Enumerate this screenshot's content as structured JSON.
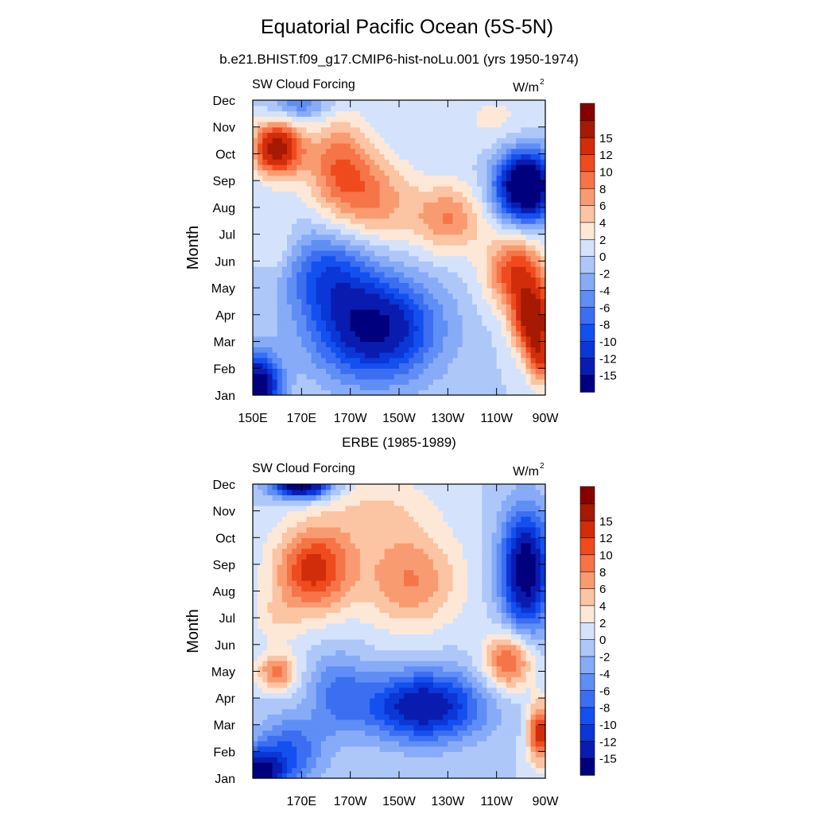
{
  "title": "Equatorial Pacific Ocean (5S-5N)",
  "colorbar": {
    "levels": [
      -15,
      -12,
      -10,
      -8,
      -6,
      -4,
      -2,
      0,
      2,
      4,
      6,
      8,
      10,
      12,
      15
    ],
    "colors": [
      "#00007f",
      "#0a1cb0",
      "#0a37d6",
      "#1450f0",
      "#3c6ef2",
      "#5f8ef5",
      "#87abf7",
      "#adc7f9",
      "#d4e3fb",
      "#fde8d8",
      "#fbc4a2",
      "#f99b70",
      "#f57448",
      "#ef4b1e",
      "#d22d0a",
      "#a51a00",
      "#870000"
    ]
  },
  "chart_data": [
    {
      "type": "heatmap",
      "subtitle": "b.e21.BHIST.f09_g17.CMIP6-hist-noLu.001 (yrs 1950-1974)",
      "left_label": "SW Cloud Forcing",
      "units_label": "W/m",
      "units_sup": "2",
      "ylabel": "Month",
      "yticks": [
        "Jan",
        "Feb",
        "Mar",
        "Apr",
        "May",
        "Jun",
        "Jul",
        "Aug",
        "Sep",
        "Oct",
        "Nov",
        "Dec"
      ],
      "xticks": [
        "150E",
        "170E",
        "170W",
        "150W",
        "130W",
        "110W",
        "90W"
      ],
      "x_lon": [
        150,
        170,
        190,
        210,
        230,
        250,
        270
      ],
      "xlim": [
        150,
        270
      ],
      "ylim": [
        1,
        12
      ],
      "fields": [
        {
          "lon": 160,
          "month": 10.2,
          "amp": 17,
          "sx": 10,
          "sy": 1.0
        },
        {
          "lon": 185,
          "month": 9.6,
          "amp": 9,
          "sx": 14,
          "sy": 1.8
        },
        {
          "lon": 200,
          "month": 8.3,
          "amp": 7,
          "sx": 16,
          "sy": 1.6
        },
        {
          "lon": 230,
          "month": 7.6,
          "amp": 8,
          "sx": 15,
          "sy": 1.3
        },
        {
          "lon": 258,
          "month": 5.6,
          "amp": 12,
          "sx": 12,
          "sy": 1.4
        },
        {
          "lon": 265,
          "month": 3.8,
          "amp": 17,
          "sx": 8,
          "sy": 1.3
        },
        {
          "lon": 268,
          "month": 2.3,
          "amp": 9,
          "sx": 5,
          "sy": 1.0
        },
        {
          "lon": 200,
          "month": 3.5,
          "amp": -16,
          "sx": 25,
          "sy": 1.9
        },
        {
          "lon": 180,
          "month": 5.6,
          "amp": -8,
          "sx": 18,
          "sy": 1.6
        },
        {
          "lon": 152,
          "month": 1.4,
          "amp": -18,
          "sx": 9,
          "sy": 1.1
        },
        {
          "lon": 262,
          "month": 8.8,
          "amp": -22,
          "sx": 12,
          "sy": 1.3
        },
        {
          "lon": 250,
          "month": 11.3,
          "amp": 2.5,
          "sx": 18,
          "sy": 1.2
        },
        {
          "lon": 170,
          "month": 11.9,
          "amp": -6,
          "sx": 12,
          "sy": 0.7
        },
        {
          "lon": 160,
          "month": 6.5,
          "amp": 3,
          "sx": 8,
          "sy": 1.2
        }
      ]
    },
    {
      "type": "heatmap",
      "subtitle": "ERBE (1985-1989)",
      "left_label": "SW Cloud Forcing",
      "units_label": "W/m",
      "units_sup": "2",
      "ylabel": "Month",
      "yticks": [
        "Jan",
        "Feb",
        "Mar",
        "Apr",
        "May",
        "Jun",
        "Jul",
        "Aug",
        "Sep",
        "Oct",
        "Nov",
        "Dec"
      ],
      "xticks": [
        "170E",
        "170W",
        "150W",
        "130W",
        "110W",
        "90W"
      ],
      "x_lon": [
        170,
        190,
        210,
        230,
        250,
        270
      ],
      "xlim": [
        150,
        270
      ],
      "ylim": [
        1,
        12
      ],
      "fields": [
        {
          "lon": 220,
          "month": 3.7,
          "amp": -15,
          "sx": 24,
          "sy": 1.3
        },
        {
          "lon": 185,
          "month": 4.2,
          "amp": -6,
          "sx": 12,
          "sy": 1.5
        },
        {
          "lon": 165,
          "month": 2.0,
          "amp": -8,
          "sx": 14,
          "sy": 1.3
        },
        {
          "lon": 152,
          "month": 1.1,
          "amp": -16,
          "sx": 10,
          "sy": 0.9
        },
        {
          "lon": 170,
          "month": 12.0,
          "amp": -20,
          "sx": 12,
          "sy": 0.5
        },
        {
          "lon": 262,
          "month": 8.8,
          "amp": -18,
          "sx": 10,
          "sy": 2.2
        },
        {
          "lon": 175,
          "month": 8.8,
          "amp": 13,
          "sx": 16,
          "sy": 1.6
        },
        {
          "lon": 215,
          "month": 8.4,
          "amp": 8,
          "sx": 20,
          "sy": 1.8
        },
        {
          "lon": 160,
          "month": 5.0,
          "amp": 9,
          "sx": 8,
          "sy": 0.7
        },
        {
          "lon": 255,
          "month": 5.4,
          "amp": 11,
          "sx": 10,
          "sy": 1.1
        },
        {
          "lon": 268,
          "month": 2.7,
          "amp": 14,
          "sx": 5,
          "sy": 1.1
        },
        {
          "lon": 200,
          "month": 11.0,
          "amp": 4,
          "sx": 25,
          "sy": 1.5
        },
        {
          "lon": 160,
          "month": 7.0,
          "amp": 3,
          "sx": 10,
          "sy": 1.0
        }
      ]
    }
  ]
}
